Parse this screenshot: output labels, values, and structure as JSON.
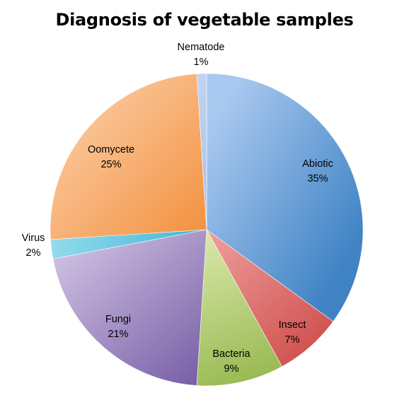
{
  "chart_data": {
    "type": "pie",
    "title": "Diagnosis of vegetable samples",
    "slices": [
      {
        "name": "Abiotic",
        "value": 35,
        "label": "35%",
        "color_light": "#a9c8ef",
        "color_dark": "#3f83c5"
      },
      {
        "name": "Insect",
        "value": 7,
        "label": "7%",
        "color_light": "#f1a5a3",
        "color_dark": "#cd4b48"
      },
      {
        "name": "Bacteria",
        "value": 9,
        "label": "9%",
        "color_light": "#dfecb1",
        "color_dark": "#92b54b"
      },
      {
        "name": "Fungi",
        "value": 21,
        "label": "21%",
        "color_light": "#cfc0e2",
        "color_dark": "#7a62a8"
      },
      {
        "name": "Virus",
        "value": 2,
        "label": "2%",
        "color_light": "#9ee0f0",
        "color_dark": "#3db2d1"
      },
      {
        "name": "Oomycete",
        "value": 25,
        "label": "25%",
        "color_light": "#fbc79b",
        "color_dark": "#f28e3a"
      },
      {
        "name": "Nematode",
        "value": 1,
        "label": "1%",
        "color_light": "#c3d6f2",
        "color_dark": "#a4c0e7"
      }
    ],
    "legend": "none",
    "label_placement": "mixed"
  }
}
